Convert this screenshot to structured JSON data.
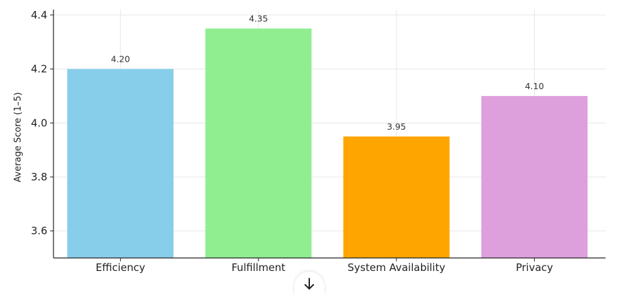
{
  "chart_data": {
    "type": "bar",
    "title": "",
    "xlabel": "",
    "ylabel": "Average Score (1–5)",
    "categories": [
      "Efficiency",
      "Fulfillment",
      "System Availability",
      "Privacy"
    ],
    "values": [
      4.2,
      4.35,
      3.95,
      4.1
    ],
    "value_labels": [
      "4.20",
      "4.35",
      "3.95",
      "4.10"
    ],
    "colors": [
      "#87ceeb",
      "#90ee90",
      "#ffa500",
      "#dda0dd"
    ],
    "ylim": [
      3.5,
      4.42
    ],
    "yticks": [
      3.6,
      3.8,
      4.0,
      4.2,
      4.4
    ],
    "ytick_labels": [
      "3.6",
      "3.8",
      "4.0",
      "4.2",
      "4.4"
    ],
    "grid": true,
    "legend": "none"
  },
  "ui": {
    "scroll_down_icon": "arrow-down-icon"
  }
}
